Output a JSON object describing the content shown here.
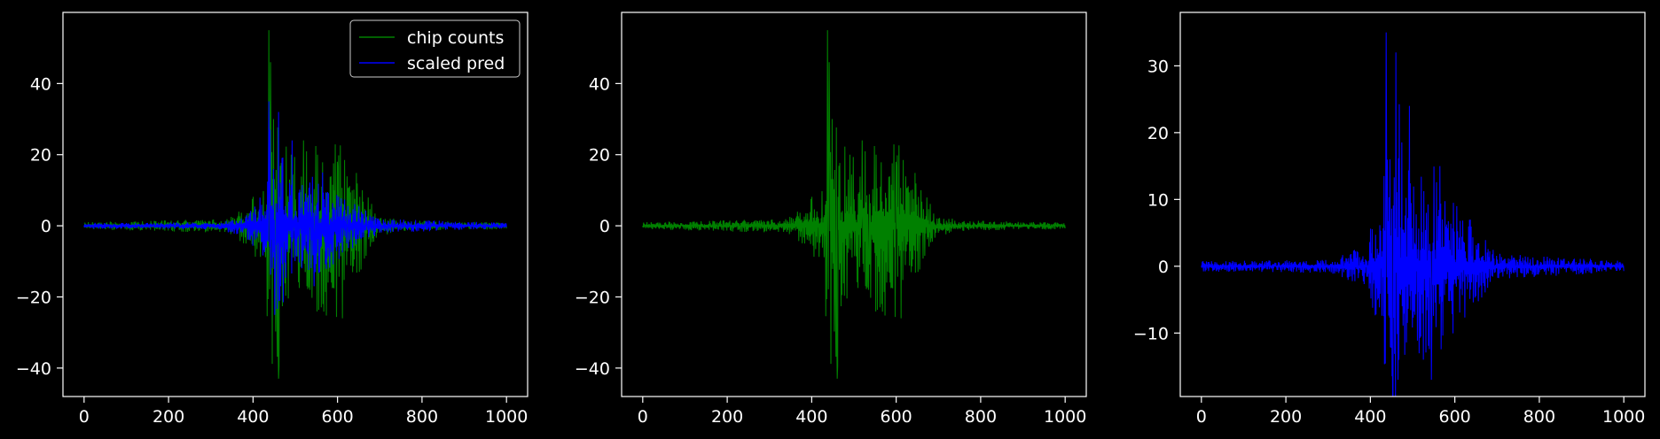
{
  "colors": {
    "background": "#000000",
    "axes": "#ffffff",
    "chip_counts": "#008000",
    "scaled_pred": "#0000ff"
  },
  "chart_data": [
    {
      "type": "line",
      "xlim": [
        -50,
        1050
      ],
      "ylim": [
        -48,
        60
      ],
      "xticks": [
        0,
        200,
        400,
        600,
        800,
        1000
      ],
      "yticks": [
        -40,
        -20,
        0,
        20,
        40
      ],
      "grid": false,
      "legend": {
        "placement": "upper-right",
        "entries": [
          "chip counts",
          "scaled pred"
        ]
      },
      "series": [
        {
          "name": "chip counts",
          "color": "#008000",
          "x_range": [
            0,
            1000
          ],
          "points": 1000,
          "envelope": [
            [
              0,
              1.0
            ],
            [
              340,
              2.0
            ],
            [
              390,
              7.0
            ],
            [
              430,
              12.0
            ],
            [
              440,
              55.0
            ],
            [
              445,
              46.0
            ],
            [
              450,
              30.0
            ],
            [
              460,
              43.0
            ],
            [
              470,
              25.0
            ],
            [
              500,
              20.0
            ],
            [
              550,
              25.0
            ],
            [
              600,
              26.0
            ],
            [
              650,
              14.0
            ],
            [
              700,
              3.0
            ],
            [
              750,
              1.5
            ],
            [
              1000,
              1.0
            ]
          ],
          "peaks": [
            [
              437,
              55
            ],
            [
              441,
              46
            ],
            [
              448,
              30
            ],
            [
              460,
              -43
            ],
            [
              456,
              -26
            ],
            [
              490,
              20
            ],
            [
              520,
              24
            ],
            [
              553,
              20
            ],
            [
              600,
              18
            ],
            [
              612,
              -26
            ],
            [
              566,
              -22
            ],
            [
              535,
              -18
            ]
          ]
        },
        {
          "name": "scaled pred",
          "color": "#0000ff",
          "x_range": [
            0,
            1000
          ],
          "points": 1000,
          "envelope": [
            [
              0,
              0.8
            ],
            [
              300,
              1.0
            ],
            [
              380,
              3.0
            ],
            [
              430,
              10.0
            ],
            [
              437,
              35.0
            ],
            [
              445,
              20.0
            ],
            [
              460,
              32.0
            ],
            [
              480,
              15.0
            ],
            [
              500,
              14.0
            ],
            [
              550,
              15.0
            ],
            [
              600,
              10.0
            ],
            [
              650,
              6.0
            ],
            [
              700,
              2.0
            ],
            [
              1000,
              0.8
            ]
          ],
          "peaks": [
            [
              437,
              35
            ],
            [
              460,
              32
            ],
            [
              465,
              -17
            ],
            [
              452,
              -16
            ],
            [
              492,
              24
            ],
            [
              545,
              -17
            ],
            [
              565,
              15
            ]
          ]
        }
      ]
    },
    {
      "type": "line",
      "xlim": [
        -50,
        1050
      ],
      "ylim": [
        -48,
        60
      ],
      "xticks": [
        0,
        200,
        400,
        600,
        800,
        1000
      ],
      "yticks": [
        -40,
        -20,
        0,
        20,
        40
      ],
      "grid": false,
      "series": [
        {
          "color": "#008000",
          "x_range": [
            0,
            1000
          ],
          "points": 1000,
          "envelope": [
            [
              0,
              1.0
            ],
            [
              340,
              2.0
            ],
            [
              390,
              7.0
            ],
            [
              430,
              12.0
            ],
            [
              440,
              55.0
            ],
            [
              445,
              46.0
            ],
            [
              450,
              30.0
            ],
            [
              460,
              43.0
            ],
            [
              470,
              25.0
            ],
            [
              500,
              20.0
            ],
            [
              550,
              25.0
            ],
            [
              600,
              26.0
            ],
            [
              650,
              14.0
            ],
            [
              700,
              3.0
            ],
            [
              750,
              1.5
            ],
            [
              1000,
              1.0
            ]
          ],
          "peaks": [
            [
              437,
              55
            ],
            [
              441,
              46
            ],
            [
              448,
              30
            ],
            [
              460,
              -43
            ],
            [
              456,
              -26
            ],
            [
              490,
              20
            ],
            [
              520,
              24
            ],
            [
              553,
              20
            ],
            [
              600,
              18
            ],
            [
              612,
              -26
            ],
            [
              566,
              -22
            ],
            [
              535,
              -18
            ]
          ]
        }
      ]
    },
    {
      "type": "line",
      "xlim": [
        -50,
        1050
      ],
      "ylim": [
        -19.5,
        38
      ],
      "xticks": [
        0,
        200,
        400,
        600,
        800,
        1000
      ],
      "yticks": [
        -10,
        0,
        10,
        20,
        30
      ],
      "grid": false,
      "series": [
        {
          "color": "#0000ff",
          "x_range": [
            0,
            1000
          ],
          "points": 1000,
          "envelope": [
            [
              0,
              0.8
            ],
            [
              300,
              1.0
            ],
            [
              380,
              3.0
            ],
            [
              430,
              10.0
            ],
            [
              437,
              35.0
            ],
            [
              445,
              20.0
            ],
            [
              460,
              32.0
            ],
            [
              480,
              15.0
            ],
            [
              500,
              14.0
            ],
            [
              550,
              15.0
            ],
            [
              600,
              10.0
            ],
            [
              650,
              6.0
            ],
            [
              700,
              2.0
            ],
            [
              1000,
              0.8
            ]
          ],
          "peaks": [
            [
              437,
              35
            ],
            [
              460,
              32
            ],
            [
              465,
              -17
            ],
            [
              452,
              -16
            ],
            [
              492,
              24
            ],
            [
              545,
              -17
            ],
            [
              565,
              15
            ]
          ]
        }
      ]
    }
  ]
}
